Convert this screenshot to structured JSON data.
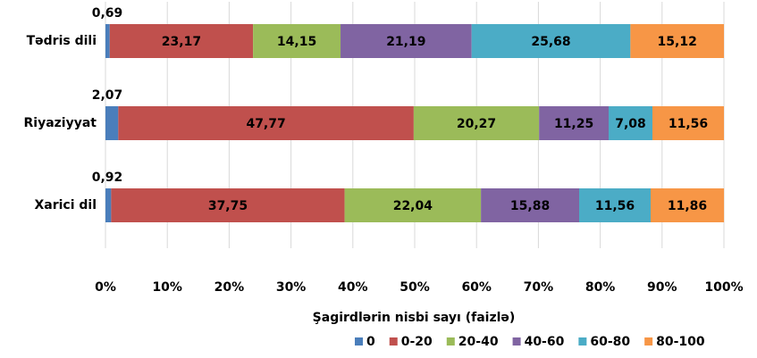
{
  "chart_data": {
    "type": "stacked_barh",
    "xlabel": "Şagirdlərin nisbi sayı (faizlə)",
    "categories": [
      "Tədris dili",
      "Riyaziyyat",
      "Xarici dil"
    ],
    "series": [
      {
        "name": "0",
        "color": "#4a7ebb",
        "values": [
          0.69,
          2.07,
          0.92
        ],
        "value_labels": [
          "0,69",
          "2,07",
          "0,92"
        ]
      },
      {
        "name": "0-20",
        "color": "#c0504d",
        "values": [
          23.17,
          47.77,
          37.75
        ],
        "value_labels": [
          "23,17",
          "47,77",
          "37,75"
        ]
      },
      {
        "name": "20-40",
        "color": "#9bbb59",
        "values": [
          14.15,
          20.27,
          22.04
        ],
        "value_labels": [
          "14,15",
          "20,27",
          "22,04"
        ]
      },
      {
        "name": "40-60",
        "color": "#8064a2",
        "values": [
          21.19,
          11.25,
          15.88
        ],
        "value_labels": [
          "21,19",
          "11,25",
          "15,88"
        ]
      },
      {
        "name": "60-80",
        "color": "#4bacc6",
        "values": [
          25.68,
          7.08,
          11.56
        ],
        "value_labels": [
          "25,68",
          "7,08",
          "11,56"
        ]
      },
      {
        "name": "80-100",
        "color": "#f79646",
        "values": [
          15.12,
          11.56,
          11.86
        ],
        "value_labels": [
          "15,12",
          "11,56",
          "11,86"
        ]
      }
    ],
    "xlim": [
      0,
      100
    ],
    "xticks": [
      {
        "value": 0,
        "label": "0%"
      },
      {
        "value": 10,
        "label": "10%"
      },
      {
        "value": 20,
        "label": "20%"
      },
      {
        "value": 30,
        "label": "30%"
      },
      {
        "value": 40,
        "label": "40%"
      },
      {
        "value": 50,
        "label": "50%"
      },
      {
        "value": 60,
        "label": "60%"
      },
      {
        "value": 70,
        "label": "70%"
      },
      {
        "value": 80,
        "label": "80%"
      },
      {
        "value": 90,
        "label": "90%"
      },
      {
        "value": 100,
        "label": "100%"
      }
    ],
    "grid": true,
    "legend": "bottom-right"
  }
}
